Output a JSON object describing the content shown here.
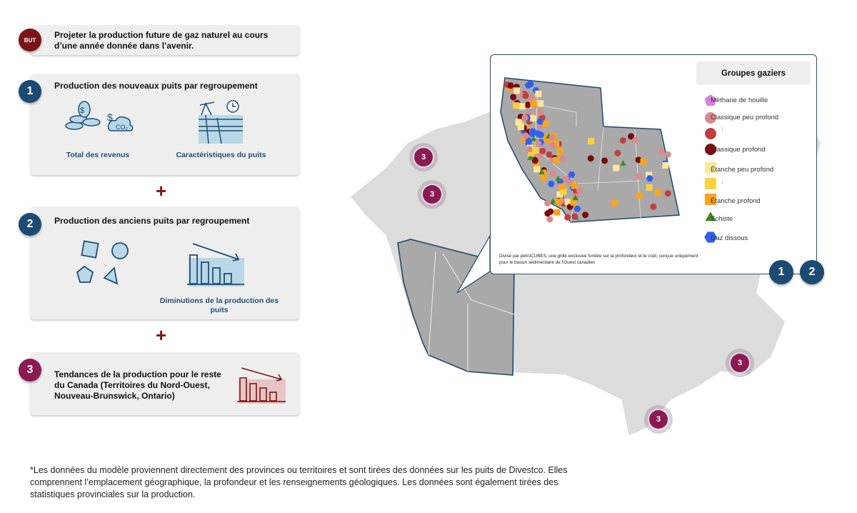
{
  "goal": {
    "badge": "BUT",
    "text": "Projeter la production future de gaz naturel au cours d’une année donnée dans l’avenir."
  },
  "steps": [
    {
      "number": "1",
      "title": "Production des nouveaux puits par regroupement",
      "items": [
        {
          "label": "Total des revenus",
          "icon": "coins-co2-icon"
        },
        {
          "label": "Caractéristiques du puits",
          "icon": "well-pump-icon"
        }
      ]
    },
    {
      "number": "2",
      "title": "Production des anciens puits par regroupement",
      "items": [
        {
          "label": "",
          "icon": "shapes-icon"
        },
        {
          "label": "Diminutions de la production des puits",
          "icon": "declining-bars-icon"
        }
      ]
    },
    {
      "number": "3",
      "title": "Tendances de la production pour le reste du Canada (Territoires du Nord-Ouest, Nouveau-Brunswick, Ontario)",
      "items": [
        {
          "label": "",
          "icon": "declining-bars-icon"
        }
      ]
    }
  ],
  "plus": "+",
  "footnote": "*Les données du modèle proviennent directement des provinces ou territoires et sont tirées des données sur les puits de Divestco. Elles comprennent l’emplacement géographique, la profondeur et les renseignements géologiques. Les données sont également tirées des statistiques provinciales sur la production.",
  "map": {
    "step_badges": [
      "1",
      "2"
    ],
    "region_badges": [
      "3",
      "3",
      "3",
      "3"
    ],
    "inset_note": "Divisé par petroCUBES, une grille exclusive fondée sur la profondeur et le coût, conçue uniquement pour le bassin sédimentaire de l’Ouest canadien",
    "legend": {
      "title": "Groupes gaziers",
      "items": [
        {
          "label": "Méthane de houille",
          "shape": "pentagon",
          "color": "#d77fe0"
        },
        {
          "label": "Classique peu profond",
          "shape": "circle",
          "color": "#d98a8a"
        },
        {
          "label": "",
          "shape": "circle",
          "color": "#c0403f"
        },
        {
          "label": "Classique profond",
          "shape": "circle",
          "color": "#7a0b0b"
        },
        {
          "label": "Étanche peu profond",
          "shape": "square",
          "color": "#fbe79a"
        },
        {
          "label": "",
          "shape": "square",
          "color": "#fdd23a"
        },
        {
          "label": "Étanche profond",
          "shape": "square",
          "color": "#fba41a"
        },
        {
          "label": "Schiste",
          "shape": "triangle",
          "color": "#3d8a1e"
        },
        {
          "label": "Gaz dissous",
          "shape": "hexagon",
          "color": "#2f5ff5"
        }
      ]
    }
  },
  "colors": {
    "navy": "#1b4a72",
    "maroon": "#7a1414",
    "plum": "#8c1a52",
    "card": "#eeeeee"
  }
}
